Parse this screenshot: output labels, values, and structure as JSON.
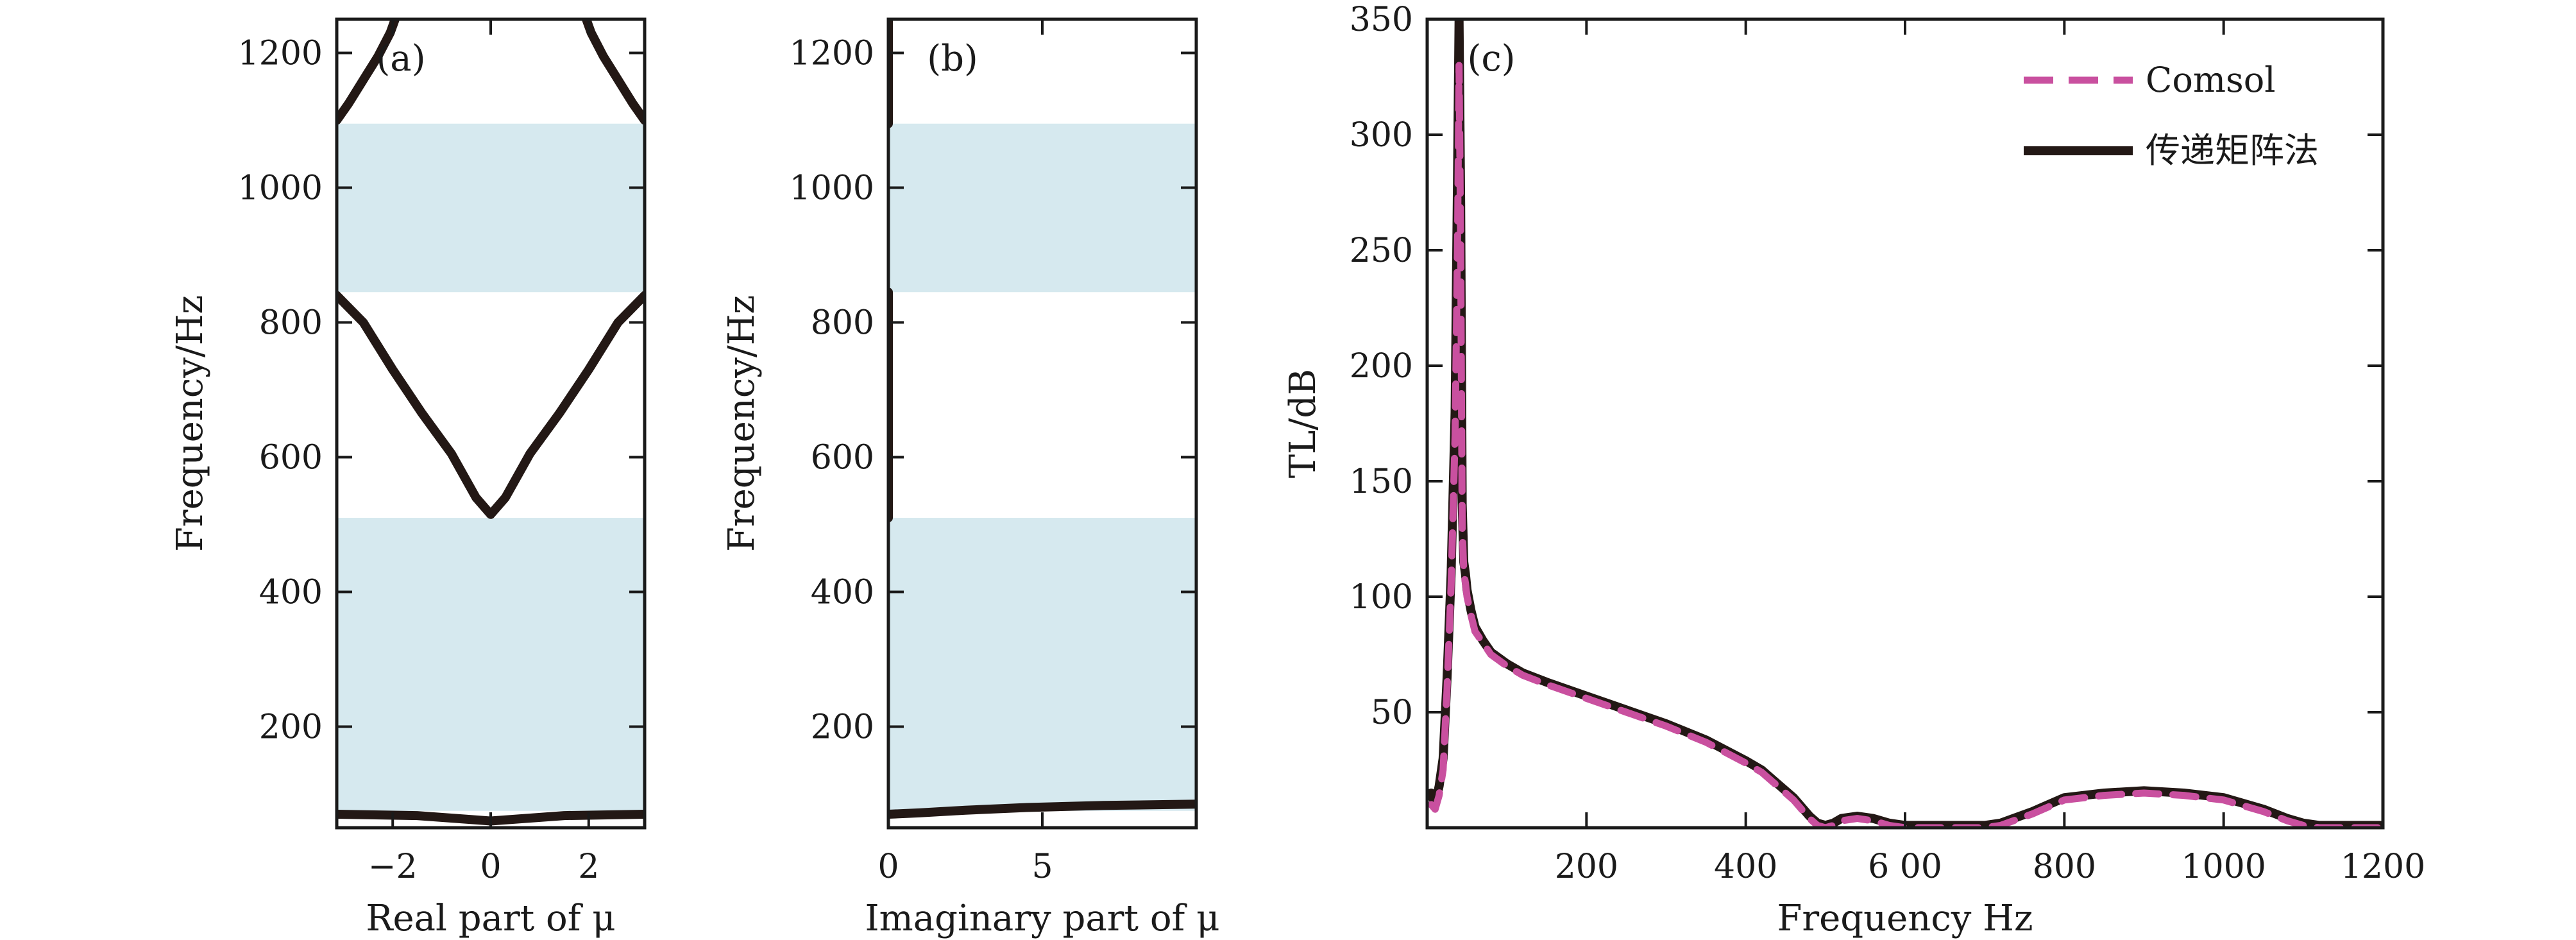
{
  "colors": {
    "band": "#d6e9ef",
    "curve": "#231815",
    "comsol": "#c9509f",
    "axis": "#1a1a1a"
  },
  "chart_data": [
    {
      "id": "a",
      "type": "line",
      "panel_label": "(a)",
      "xlabel": "Real part of μ",
      "ylabel": "Frequency/Hz",
      "xlim": [
        -3.14159,
        3.14159
      ],
      "ylim": [
        50,
        1250
      ],
      "xticks": [
        -2,
        0,
        2
      ],
      "xtick_labels": [
        "−2",
        "0",
        "2"
      ],
      "yticks": [
        200,
        400,
        600,
        800,
        1000,
        1200
      ],
      "ytick_labels": [
        "200",
        "400",
        "600",
        "800",
        "1000",
        "1200"
      ],
      "bands": [
        [
          75,
          510
        ],
        [
          845,
          1095
        ]
      ],
      "series": [
        {
          "x": [
            -3.14,
            -1.5,
            0,
            1.5,
            3.14
          ],
          "y": [
            70,
            68,
            60,
            68,
            70
          ]
        },
        {
          "x": [
            -3.14,
            -2.6,
            -2.0,
            -1.4,
            -0.8,
            -0.3,
            0,
            0.3,
            0.8,
            1.4,
            2.0,
            2.6,
            3.14
          ],
          "y": [
            840,
            800,
            730,
            665,
            605,
            540,
            515,
            540,
            605,
            665,
            730,
            800,
            840
          ]
        },
        {
          "x": [
            -3.14,
            -2.9,
            -2.6,
            -2.3,
            -2.05,
            -1.95
          ],
          "y": [
            1100,
            1125,
            1160,
            1195,
            1230,
            1250
          ]
        },
        {
          "x": [
            3.14,
            2.9,
            2.6,
            2.3,
            2.05,
            1.95
          ],
          "y": [
            1100,
            1125,
            1160,
            1195,
            1230,
            1250
          ]
        }
      ]
    },
    {
      "id": "b",
      "type": "line",
      "panel_label": "(b)",
      "xlabel": "Imaginary part of μ",
      "ylabel": "Frequency/Hz",
      "xlim": [
        0,
        10
      ],
      "ylim": [
        50,
        1250
      ],
      "xticks": [
        0,
        5
      ],
      "xtick_labels": [
        "0",
        "5"
      ],
      "yticks": [
        200,
        400,
        600,
        800,
        1000,
        1200
      ],
      "ytick_labels": [
        "200",
        "400",
        "600",
        "800",
        "1000",
        "1200"
      ],
      "bands": [
        [
          75,
          510
        ],
        [
          845,
          1095
        ]
      ],
      "series": [
        {
          "x": [
            0,
            1.0,
            2.5,
            4.5,
            7.0,
            10
          ],
          "y": [
            70,
            72,
            76,
            80,
            83,
            85
          ]
        },
        {
          "x": [
            0,
            0,
            0
          ],
          "y": [
            510,
            680,
            845
          ]
        },
        {
          "x": [
            0,
            0,
            0
          ],
          "y": [
            1095,
            1180,
            1250
          ]
        }
      ]
    },
    {
      "id": "c",
      "type": "line",
      "panel_label": "(c)",
      "xlabel": "Frequency Hz",
      "ylabel": "TL/dB",
      "xlim": [
        0,
        1200
      ],
      "ylim": [
        0,
        350
      ],
      "xticks": [
        200,
        400,
        600,
        800,
        1000,
        1200
      ],
      "xtick_labels": [
        "200",
        "400",
        "6 00",
        "800",
        "1000",
        "1200"
      ],
      "yticks": [
        50,
        100,
        150,
        200,
        250,
        300,
        350
      ],
      "ytick_labels": [
        "50",
        "100",
        "150",
        "200",
        "250",
        "300",
        "350"
      ],
      "legend_position": "top-right",
      "series": [
        {
          "name": "Comsol",
          "style": "dashed",
          "x": [
            5,
            10,
            15,
            20,
            25,
            30,
            35,
            38,
            40,
            42,
            44,
            46,
            48,
            50,
            55,
            60,
            70,
            80,
            100,
            120,
            150,
            200,
            250,
            300,
            350,
            400,
            420,
            440,
            460,
            470,
            480,
            490,
            500,
            510,
            520,
            540,
            560,
            580,
            600,
            650,
            700,
            720,
            760,
            800,
            850,
            900,
            950,
            1000,
            1050,
            1080,
            1100,
            1120,
            1150,
            1200
          ],
          "y": [
            10,
            8,
            14,
            25,
            60,
            105,
            170,
            250,
            330,
            250,
            130,
            110,
            106,
            100,
            92,
            85,
            80,
            75,
            70,
            66,
            62,
            56,
            50,
            44,
            37,
            28,
            24,
            18,
            12,
            8,
            4,
            1,
            0,
            1,
            3,
            4,
            3,
            1,
            0,
            0,
            0,
            1,
            6,
            12,
            14,
            15,
            14,
            12,
            7,
            3,
            1,
            0,
            0,
            0
          ]
        },
        {
          "name": "传递矩阵法",
          "style": "solid",
          "x": [
            5,
            10,
            15,
            20,
            25,
            30,
            35,
            38,
            40,
            42,
            44,
            46,
            48,
            50,
            55,
            60,
            70,
            80,
            100,
            120,
            150,
            200,
            250,
            300,
            350,
            400,
            420,
            440,
            460,
            470,
            480,
            490,
            500,
            510,
            520,
            540,
            560,
            580,
            600,
            650,
            700,
            720,
            760,
            800,
            850,
            900,
            950,
            1000,
            1050,
            1080,
            1100,
            1120,
            1150,
            1200
          ],
          "y": [
            15,
            10,
            18,
            30,
            65,
            110,
            180,
            280,
            350,
            270,
            140,
            115,
            110,
            103,
            94,
            87,
            81,
            76,
            71,
            67,
            63,
            57,
            51,
            45,
            38,
            29,
            25,
            19,
            13,
            9,
            5,
            2,
            1,
            2,
            4,
            5,
            4,
            2,
            1,
            1,
            1,
            2,
            7,
            13,
            15,
            16,
            15,
            13,
            8,
            4,
            2,
            1,
            1,
            1
          ]
        }
      ]
    }
  ]
}
